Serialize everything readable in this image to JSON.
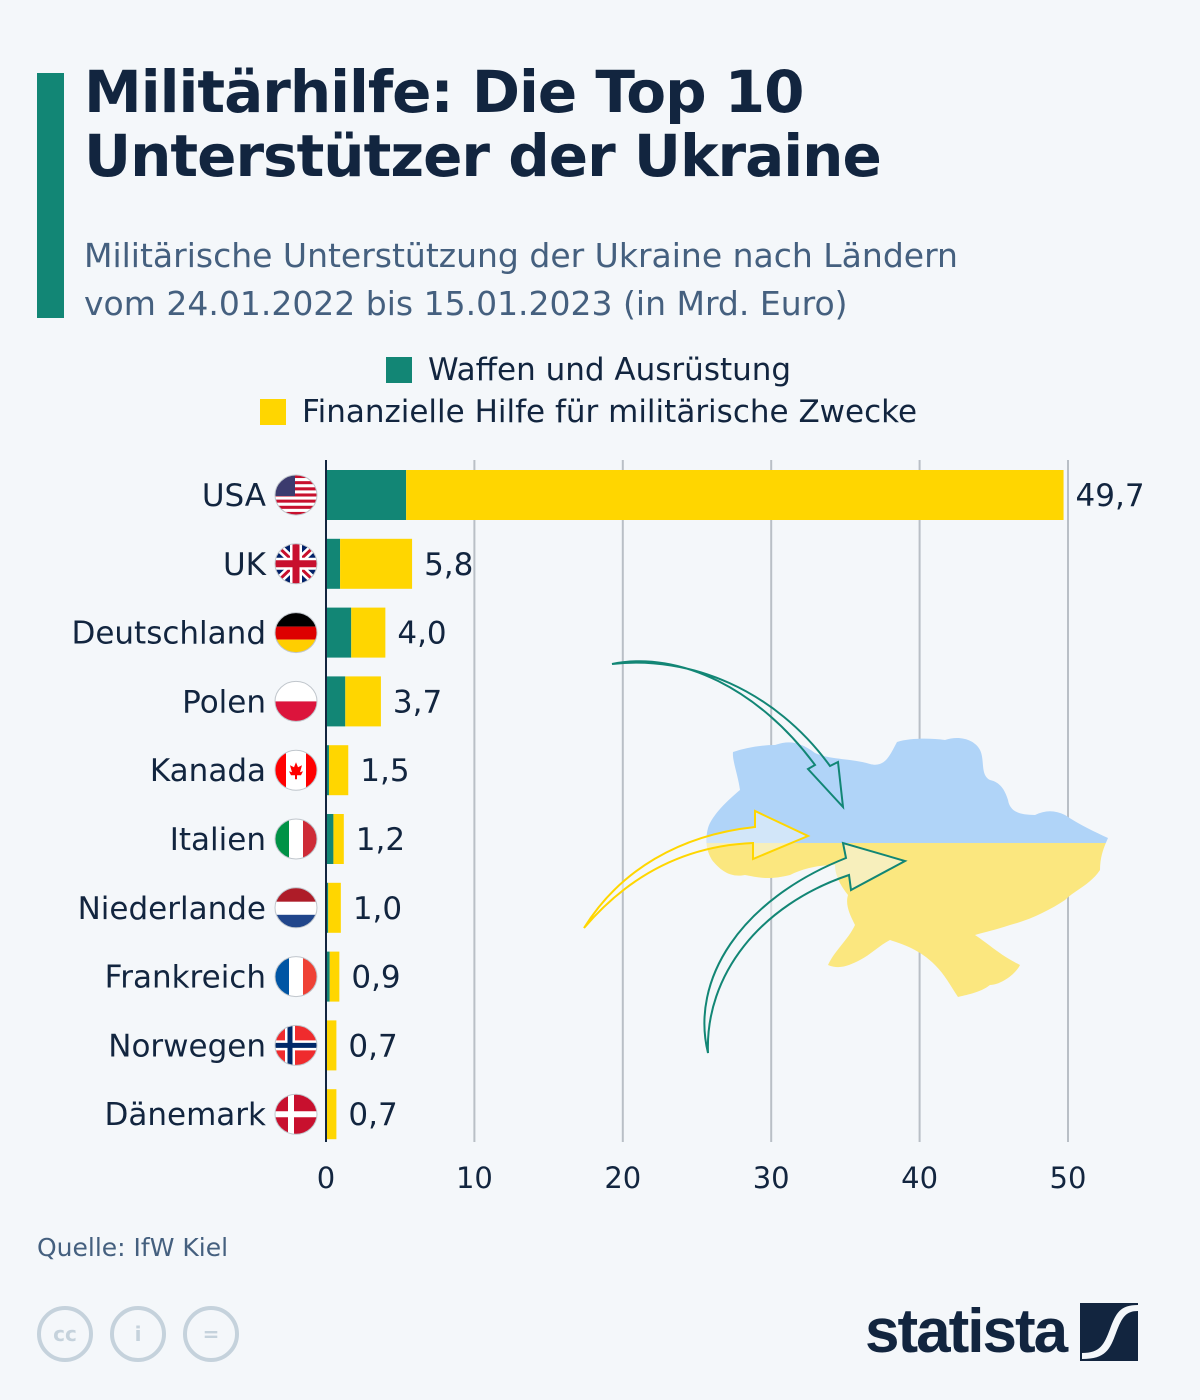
{
  "title_lines": [
    "Militärhilfe: Die Top 10",
    "Unterstützer der Ukraine"
  ],
  "subtitle_lines": [
    "Militärische Unterstützung der Ukraine nach Ländern",
    "vom 24.01.2022 bis 15.01.2023 (in Mrd. Euro)"
  ],
  "colors": {
    "accent": "#128675",
    "weapons": "#128675",
    "financial": "#ffd600",
    "text": "#12253f",
    "grid": "#b9bfc6"
  },
  "source": "Quelle: IfW Kiel",
  "license_icons": [
    "cc-icon",
    "by-icon",
    "nd-icon"
  ],
  "brand": "statista",
  "chart_data": {
    "type": "bar",
    "orientation": "horizontal",
    "stacked": true,
    "title": "Militärhilfe: Die Top 10 Unterstützer der Ukraine",
    "xlabel": "",
    "ylabel": "",
    "xlim": [
      0,
      50
    ],
    "xticks": [
      0,
      10,
      20,
      30,
      40,
      50
    ],
    "grid": true,
    "legend_position": "top",
    "categories": [
      "USA",
      "UK",
      "Deutschland",
      "Polen",
      "Kanada",
      "Italien",
      "Niederlande",
      "Frankreich",
      "Norwegen",
      "Dänemark"
    ],
    "flags": [
      "us-flag-icon",
      "uk-flag-icon",
      "germany-flag-icon",
      "poland-flag-icon",
      "canada-flag-icon",
      "italy-flag-icon",
      "netherlands-flag-icon",
      "france-flag-icon",
      "norway-flag-icon",
      "denmark-flag-icon"
    ],
    "series": [
      {
        "name": "Waffen und Ausrüstung",
        "values": [
          5.4,
          0.95,
          1.7,
          1.3,
          0.2,
          0.5,
          0.15,
          0.25,
          0.05,
          0.05
        ]
      },
      {
        "name": "Finanzielle Hilfe für militärische Zwecke",
        "values": [
          44.3,
          4.85,
          2.3,
          2.4,
          1.3,
          0.7,
          0.85,
          0.65,
          0.65,
          0.65
        ]
      }
    ],
    "totals": [
      49.7,
      5.8,
      4.0,
      3.7,
      1.5,
      1.2,
      1.0,
      0.9,
      0.7,
      0.7
    ],
    "total_labels": [
      "49,7",
      "5,8",
      "4,0",
      "3,7",
      "1,5",
      "1,2",
      "1,0",
      "0,9",
      "0,7",
      "0,7"
    ]
  }
}
